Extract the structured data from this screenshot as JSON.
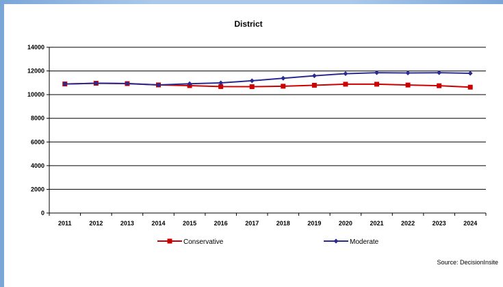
{
  "chart_data": {
    "type": "line",
    "title": "District",
    "xlabel": "",
    "ylabel": "",
    "categories": [
      "2011",
      "2012",
      "2013",
      "2014",
      "2015",
      "2016",
      "2017",
      "2018",
      "2019",
      "2020",
      "2021",
      "2022",
      "2023",
      "2024"
    ],
    "ylim": [
      0,
      14000
    ],
    "yticks": [
      0,
      2000,
      4000,
      6000,
      8000,
      10000,
      12000,
      14000
    ],
    "grid": true,
    "legend_position": "bottom",
    "series": [
      {
        "name": "Conservative",
        "color": "#cc0000",
        "marker": "square",
        "values": [
          10900,
          10960,
          10930,
          10820,
          10760,
          10680,
          10670,
          10710,
          10790,
          10880,
          10880,
          10810,
          10750,
          10630
        ]
      },
      {
        "name": "Moderate",
        "color": "#2a2a8f",
        "marker": "diamond",
        "values": [
          10900,
          10960,
          10940,
          10820,
          10920,
          10990,
          11170,
          11380,
          11590,
          11770,
          11850,
          11830,
          11850,
          11800
        ]
      }
    ],
    "source": "Source:   DecisionInsite"
  }
}
